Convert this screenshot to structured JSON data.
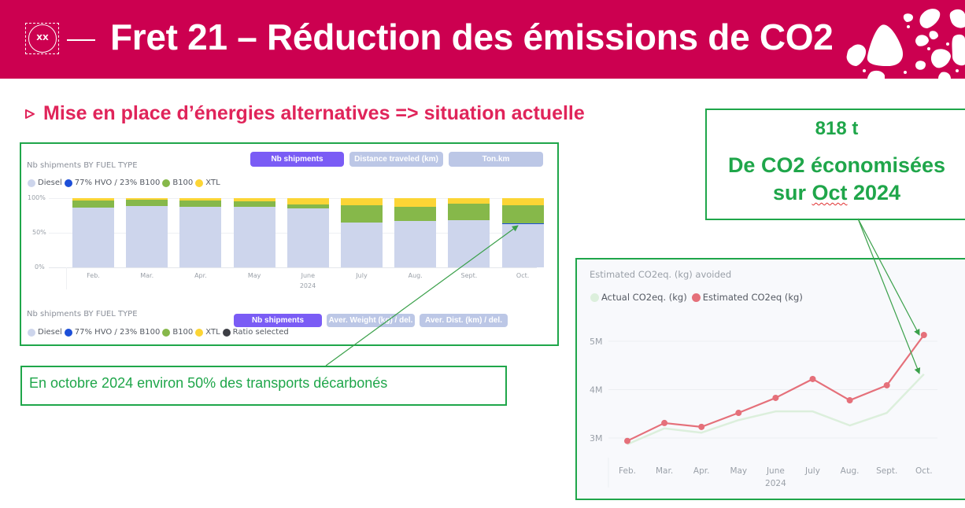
{
  "header": {
    "logo_text": "XX",
    "title": "Fret 21 – Réduction des émissions de CO2",
    "brand_color": "#cc0050"
  },
  "subtitle": {
    "bullet_icon": "triangle-bullet-icon",
    "text": "Mise en place d’énergies alternatives  => situation actuelle"
  },
  "bar_panel": {
    "title_top": "Nb shipments BY FUEL TYPE",
    "title_bottom": "Nb shipments BY FUEL TYPE",
    "legend_top": [
      {
        "label": "Diesel",
        "color": "#cdd5ec"
      },
      {
        "label": "77% HVO / 23% B100",
        "color": "#1d4fd8"
      },
      {
        "label": "B100",
        "color": "#86b84a"
      },
      {
        "label": "XTL",
        "color": "#fcd535"
      }
    ],
    "legend_bottom": [
      {
        "label": "Diesel",
        "color": "#cdd5ec"
      },
      {
        "label": "77% HVO / 23% B100",
        "color": "#1d4fd8"
      },
      {
        "label": "B100",
        "color": "#86b84a"
      },
      {
        "label": "XTL",
        "color": "#fcd535"
      },
      {
        "label": "Ratio selected",
        "color": "#3d3f45"
      }
    ],
    "tabs_top": [
      {
        "label": "Nb shipments",
        "active": true
      },
      {
        "label": "Distance traveled (km)",
        "active": false
      },
      {
        "label": "Ton.km",
        "active": false
      }
    ],
    "tabs_bottom": [
      {
        "label": "Nb shipments",
        "active": true
      },
      {
        "label": "Aver. Weight (kg) / del.",
        "active": false
      },
      {
        "label": "Aver. Dist. (km) / del.",
        "active": false
      }
    ],
    "y_ticks": [
      "100%",
      "50%",
      "0%"
    ],
    "year_label": "2024"
  },
  "callout": {
    "text": "En octobre 2024 environ 50% des transports décarbonés"
  },
  "kpi": {
    "value": "818 t",
    "line2": "De CO2 économisées",
    "line3_prefix": "sur ",
    "line3_word": "Oct",
    "line3_suffix": " 2024"
  },
  "line_panel": {
    "title": "Estimated CO2eq. (kg) avoided",
    "legend": [
      {
        "label": "Actual CO2eq. (kg)",
        "color": "#dcefdc"
      },
      {
        "label": "Estimated CO2eq (kg)",
        "color": "#e5707a"
      }
    ],
    "y_ticks": [
      "5M",
      "4M",
      "3M"
    ],
    "year_label": "2024"
  },
  "chart_data": [
    {
      "type": "bar",
      "stacked": true,
      "normalized": true,
      "title": "Nb shipments BY FUEL TYPE",
      "xlabel": "2024",
      "ylabel": "",
      "ylim": [
        0,
        100
      ],
      "categories": [
        "Feb.",
        "Mar.",
        "Apr.",
        "May",
        "June",
        "July",
        "Aug.",
        "Sept.",
        "Oct."
      ],
      "series": [
        {
          "name": "Diesel",
          "color": "#cdd5ec",
          "values": [
            86,
            89,
            87,
            87,
            85,
            65,
            67,
            68,
            62
          ]
        },
        {
          "name": "77% HVO / 23% B100",
          "color": "#1d4fd8",
          "values": [
            0,
            0,
            0,
            0,
            0,
            0,
            0,
            0,
            2
          ]
        },
        {
          "name": "B100",
          "color": "#86b84a",
          "values": [
            11,
            9,
            10,
            8,
            6,
            25,
            21,
            24,
            26
          ]
        },
        {
          "name": "XTL",
          "color": "#fcd535",
          "values": [
            3,
            2,
            3,
            5,
            9,
            10,
            12,
            8,
            10
          ]
        }
      ],
      "grid": true,
      "legend_position": "top-left"
    },
    {
      "type": "line",
      "title": "Estimated CO2eq. (kg) avoided",
      "xlabel": "2024",
      "ylabel": "",
      "ylim": [
        2.5,
        5.5
      ],
      "y_unit": "M",
      "categories": [
        "Feb.",
        "Mar.",
        "Apr.",
        "May",
        "June",
        "July",
        "Aug.",
        "Sept.",
        "Oct."
      ],
      "series": [
        {
          "name": "Actual CO2eq. (kg)",
          "color": "#dcefdc",
          "values": [
            2.87,
            3.2,
            3.11,
            3.37,
            3.55,
            3.55,
            3.26,
            3.52,
            4.32
          ]
        },
        {
          "name": "Estimated CO2eq (kg)",
          "color": "#e5707a",
          "values": [
            2.94,
            3.31,
            3.23,
            3.52,
            3.83,
            4.22,
            3.78,
            4.09,
            5.13
          ]
        }
      ],
      "grid": true,
      "legend_position": "top-left"
    }
  ]
}
